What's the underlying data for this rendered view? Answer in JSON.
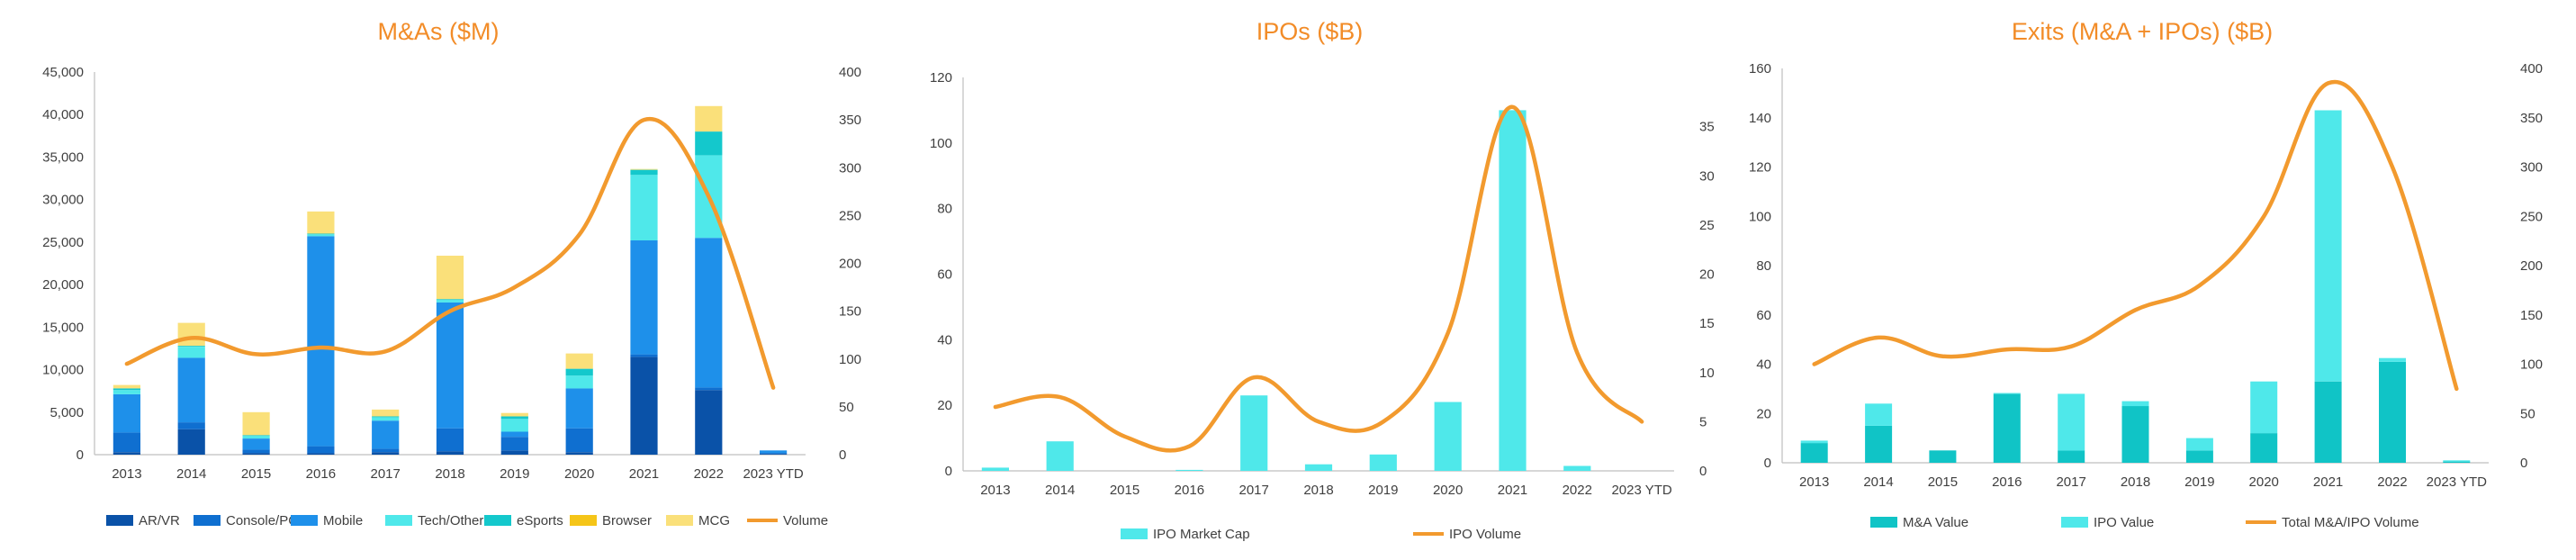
{
  "colors": {
    "AR/VR": "#0A52A8",
    "Console/PC": "#0F6FD0",
    "Mobile": "#1E90EA",
    "Tech/Other": "#4FE8EA",
    "eSports": "#14C8CC",
    "Browser": "#F5C518",
    "MCG": "#FAE07A",
    "Volume": "#F29A2E",
    "IPO Market Cap": "#4FE8EA",
    "IPO Volume": "#F29A2E",
    "M&A Value": "#10C4C6",
    "IPO Value": "#4FE8EA",
    "Total M&A/IPO Volume": "#F29A2E"
  },
  "chart_data": [
    {
      "type": "bar",
      "stacked": true,
      "title": "M&As ($M)",
      "categories": [
        "2013",
        "2014",
        "2015",
        "2016",
        "2017",
        "2018",
        "2019",
        "2020",
        "2021",
        "2022",
        "2023 YTD"
      ],
      "ylim": [
        0,
        45000
      ],
      "yticks": [
        "0",
        "5,000",
        "10,000",
        "15,000",
        "20,000",
        "25,000",
        "30,000",
        "35,000",
        "40,000",
        "45,000"
      ],
      "y2lim": [
        0,
        400
      ],
      "y2ticks": [
        "0",
        "50",
        "100",
        "150",
        "200",
        "250",
        "300",
        "350",
        "400"
      ],
      "series": [
        {
          "name": "AR/VR",
          "values": [
            300,
            3000,
            200,
            200,
            300,
            400,
            500,
            300,
            11500,
            7600,
            100
          ]
        },
        {
          "name": "Console/PC",
          "values": [
            2300,
            800,
            400,
            800,
            400,
            2700,
            1600,
            2800,
            300,
            300,
            100
          ]
        },
        {
          "name": "Mobile",
          "values": [
            4500,
            7600,
            1300,
            24700,
            3300,
            14800,
            600,
            4700,
            13400,
            17600,
            300
          ]
        },
        {
          "name": "Tech/Other",
          "values": [
            500,
            1300,
            300,
            200,
            400,
            300,
            1500,
            1500,
            7700,
            9700,
            0
          ]
        },
        {
          "name": "eSports",
          "values": [
            200,
            100,
            100,
            100,
            100,
            100,
            300,
            800,
            600,
            2800,
            0
          ]
        },
        {
          "name": "Browser",
          "values": [
            0,
            0,
            0,
            0,
            0,
            0,
            0,
            0,
            0,
            0,
            0
          ]
        },
        {
          "name": "MCG",
          "values": [
            400,
            2700,
            2700,
            2600,
            800,
            5100,
            400,
            1800,
            100,
            3000,
            0
          ]
        }
      ],
      "line": {
        "name": "Volume",
        "axis": "secondary",
        "values": [
          95,
          122,
          105,
          112,
          108,
          150,
          175,
          230,
          350,
          270,
          70
        ]
      },
      "legend": "bottom"
    },
    {
      "type": "bar",
      "title": "IPOs ($B)",
      "categories": [
        "2013",
        "2014",
        "2015",
        "2016",
        "2017",
        "2018",
        "2019",
        "2020",
        "2021",
        "2022",
        "2023 YTD"
      ],
      "ylim": [
        0,
        120
      ],
      "yticks": [
        "0",
        "20",
        "40",
        "60",
        "80",
        "100",
        "120"
      ],
      "y2lim": [
        0,
        40
      ],
      "y2ticks": [
        "0",
        "5",
        "10",
        "15",
        "20",
        "25",
        "30",
        "35"
      ],
      "series": [
        {
          "name": "IPO Market Cap",
          "values": [
            1,
            9,
            0,
            0.3,
            23,
            2,
            5,
            21,
            110,
            1.5,
            0
          ]
        }
      ],
      "line": {
        "name": "IPO Volume",
        "axis": "secondary",
        "values": [
          6.5,
          7.5,
          3.5,
          2.5,
          9.5,
          5,
          5,
          14,
          37,
          12,
          5
        ]
      },
      "legend": "bottom"
    },
    {
      "type": "bar",
      "stacked": true,
      "title": "Exits (M&A + IPOs) ($B)",
      "categories": [
        "2013",
        "2014",
        "2015",
        "2016",
        "2017",
        "2018",
        "2019",
        "2020",
        "2021",
        "2022",
        "2023 YTD"
      ],
      "ylim": [
        0,
        160
      ],
      "yticks": [
        "0",
        "20",
        "40",
        "60",
        "80",
        "100",
        "120",
        "140",
        "160"
      ],
      "y2lim": [
        0,
        400
      ],
      "y2ticks": [
        "0",
        "50",
        "100",
        "150",
        "200",
        "250",
        "300",
        "350",
        "400"
      ],
      "series": [
        {
          "name": "M&A Value",
          "values": [
            8,
            15,
            5,
            28,
            5,
            23,
            5,
            12,
            33,
            41,
            0.5
          ]
        },
        {
          "name": "IPO Value",
          "values": [
            1,
            9,
            0,
            0.3,
            23,
            2,
            5,
            21,
            110,
            1.5,
            0.5
          ]
        }
      ],
      "line": {
        "name": "Total M&A/IPO Volume",
        "axis": "secondary",
        "values": [
          100,
          127,
          108,
          115,
          118,
          155,
          180,
          250,
          385,
          300,
          75
        ]
      },
      "legend": "bottom"
    }
  ]
}
